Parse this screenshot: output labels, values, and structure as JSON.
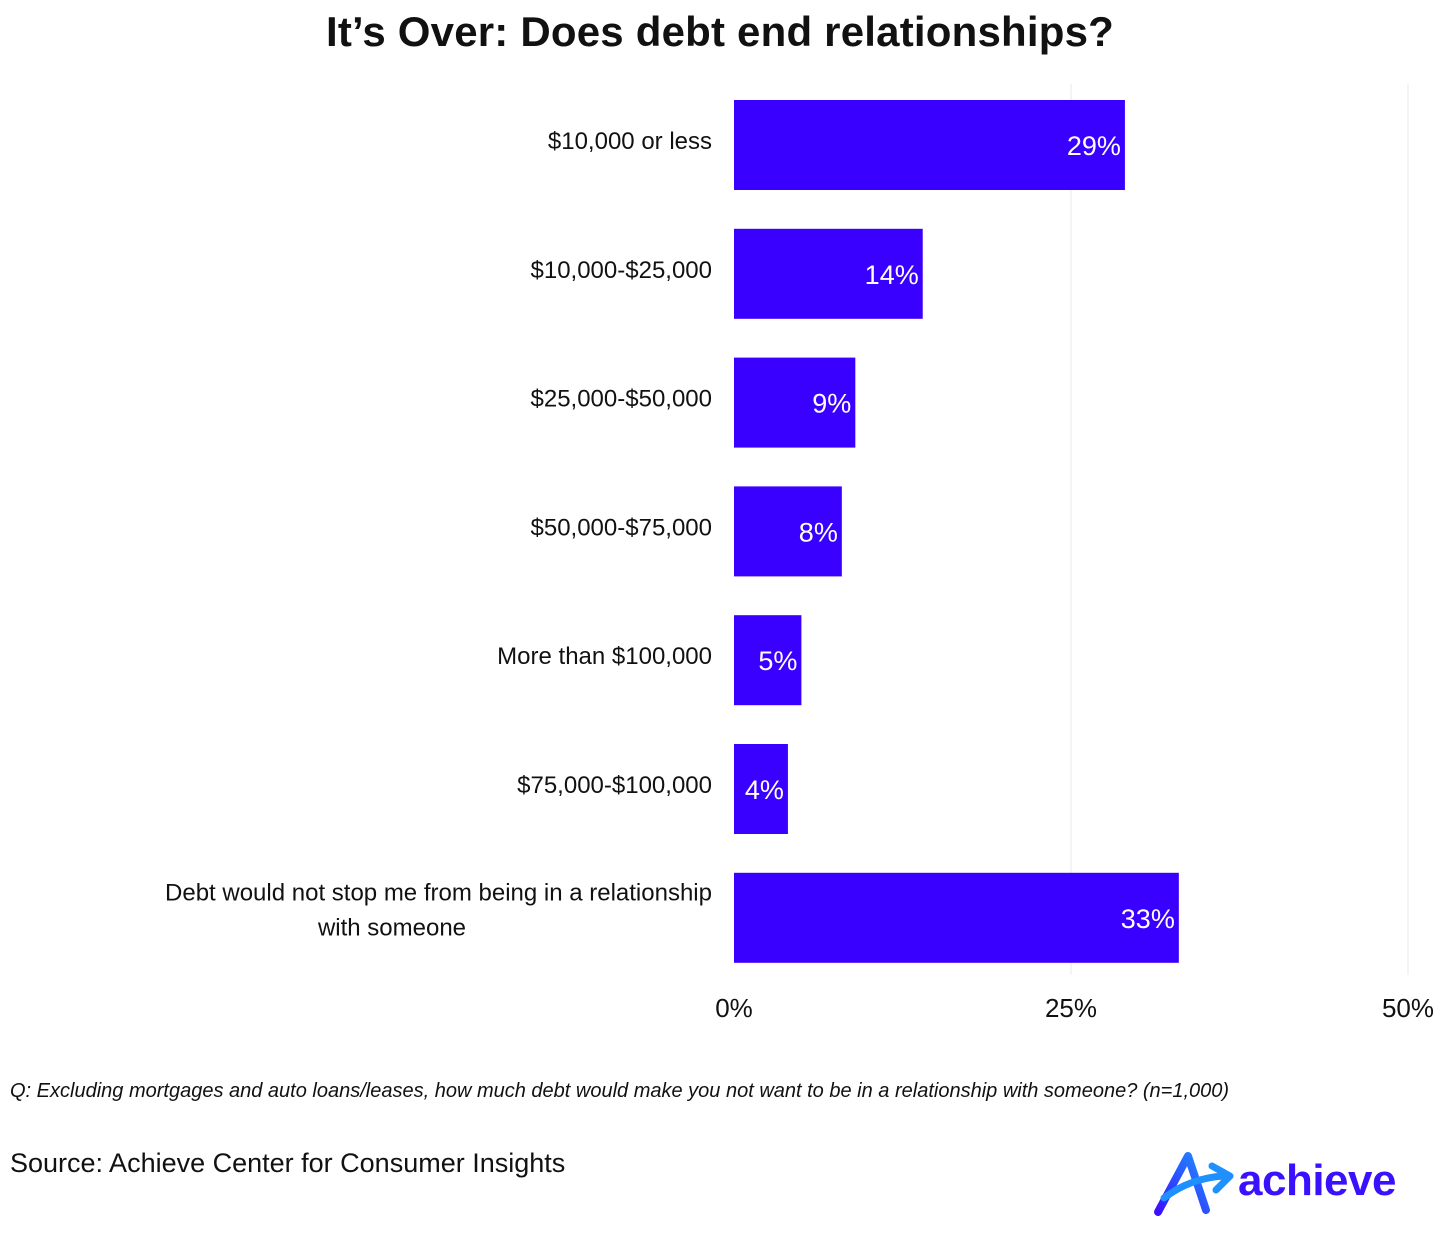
{
  "title": "It’s Over: Does debt end relationships?",
  "question": "Q: Excluding mortgages and auto loans/leases, how much debt would make you not want to be in a relationship with someone? (n=1,000)",
  "source": "Source: Achieve Center for Consumer Insights",
  "logo_text": "achieve",
  "colors": {
    "bar": "#3a00ff",
    "grid": "#f0f0f0",
    "logo_accent": "#1e90ff"
  },
  "chart_data": {
    "type": "bar",
    "orientation": "horizontal",
    "categories": [
      [
        "$10,000 or less"
      ],
      [
        "$10,000-$25,000"
      ],
      [
        "$25,000-$50,000"
      ],
      [
        "$50,000-$75,000"
      ],
      [
        "More than $100,000"
      ],
      [
        "$75,000-$100,000"
      ],
      [
        "Debt would not stop me from being in a relationship",
        "with someone"
      ]
    ],
    "values": [
      29,
      14,
      9,
      8,
      5,
      4,
      33
    ],
    "value_labels": [
      "29%",
      "14%",
      "9%",
      "8%",
      "5%",
      "4%",
      "33%"
    ],
    "xlim": [
      0,
      50
    ],
    "xticks": [
      0,
      25,
      50
    ],
    "xtick_labels": [
      "0%",
      "25%",
      "50%"
    ],
    "grid": true
  }
}
